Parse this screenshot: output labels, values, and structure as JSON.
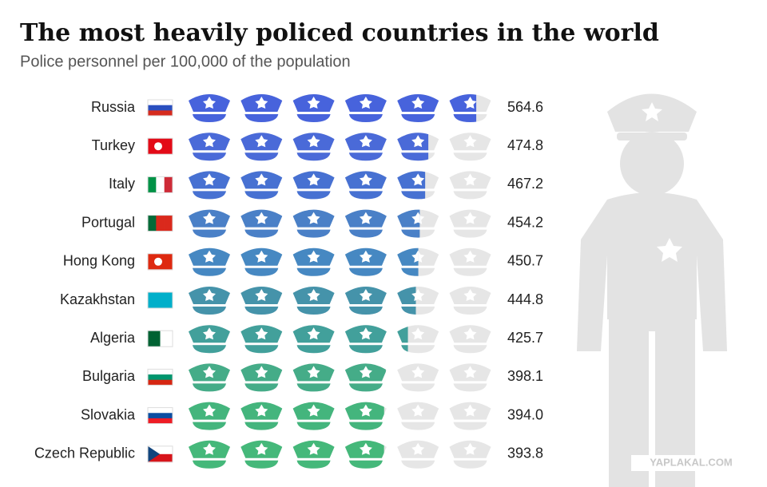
{
  "chart_data": {
    "type": "pictogram",
    "title": "The most heavily policed countries in the world",
    "subtitle": "Police personnel per 100,000 of the population",
    "categories": [
      "Russia",
      "Turkey",
      "Italy",
      "Portugal",
      "Hong Kong",
      "Kazakhstan",
      "Algeria",
      "Bulgaria",
      "Slovakia",
      "Czech Republic"
    ],
    "values": [
      564.6,
      474.8,
      467.2,
      454.2,
      450.7,
      444.8,
      425.7,
      398.1,
      394.0,
      393.8
    ],
    "value_labels": [
      "564.6",
      "474.8",
      "467.2",
      "454.2",
      "450.7",
      "444.8",
      "425.7",
      "398.1",
      "394.0",
      "393.8"
    ],
    "colors": [
      "#4763dc",
      "#4a6ad8",
      "#4771d2",
      "#4a80c7",
      "#4688c2",
      "#4593aa",
      "#42a09b",
      "#45ac88",
      "#44b57d",
      "#45b87a"
    ],
    "xlim": [
      0,
      600
    ],
    "watermark": "YAPLAKAL.COM"
  }
}
